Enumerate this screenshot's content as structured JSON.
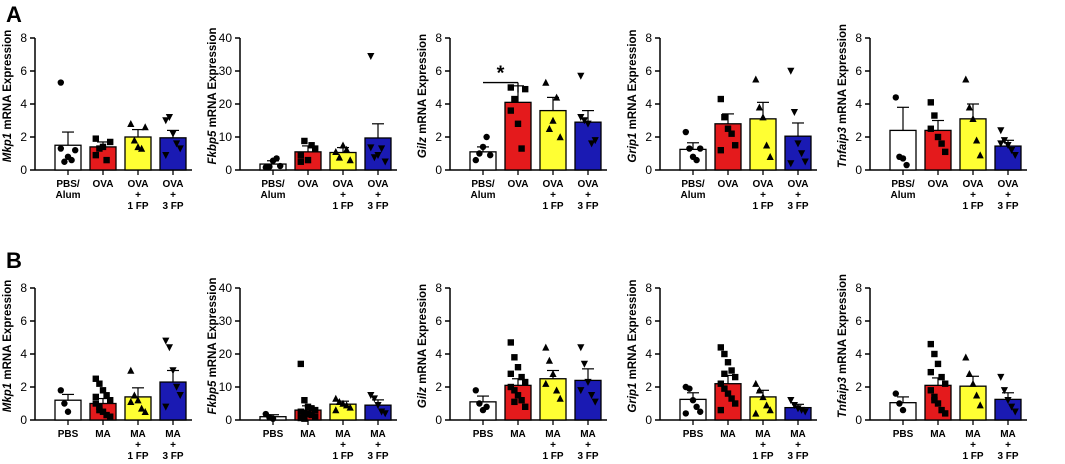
{
  "panel_labels": [
    "A",
    "B"
  ],
  "ylabel_suffix": "mRNA Expression",
  "colors": {
    "white": "#ffffff",
    "red": "#e41a1c",
    "yellow": "#ffff33",
    "blue": "#1a1ab3",
    "stroke": "#000000"
  },
  "chart_data": [
    {
      "panel": "A",
      "type": "bar",
      "gene": "Mkp1",
      "ylim": [
        0,
        8
      ],
      "yticks": [
        0,
        2,
        4,
        6,
        8
      ],
      "categories": [
        [
          "PBS/",
          "Alum"
        ],
        [
          "OVA"
        ],
        [
          "OVA",
          "+",
          "1 FP"
        ],
        [
          "OVA",
          "+",
          "3 FP"
        ]
      ],
      "fills": [
        "white",
        "red",
        "yellow",
        "blue"
      ],
      "values": [
        1.5,
        1.4,
        2.0,
        1.95
      ],
      "errors": [
        0.8,
        0.3,
        0.45,
        0.45
      ],
      "points": [
        [
          5.3,
          0.5,
          0.8,
          0.6,
          1.2,
          1.3
        ],
        [
          0.9,
          1.3,
          1.4,
          0.6,
          1.7,
          1.9
        ],
        [
          2.8,
          1.8,
          1.4,
          1.3,
          2.6
        ],
        [
          3.0,
          3.2,
          2.2,
          1.6,
          1.3,
          0.9
        ]
      ],
      "markers": [
        "circle",
        "square",
        "triangle",
        "tri-down"
      ]
    },
    {
      "panel": "A",
      "type": "bar",
      "gene": "Fkbp5",
      "ylim": [
        0,
        40
      ],
      "yticks": [
        0,
        10,
        20,
        30,
        40
      ],
      "categories": [
        [
          "PBS/",
          "Alum"
        ],
        [
          "OVA"
        ],
        [
          "OVA",
          "+",
          "1 FP"
        ],
        [
          "OVA",
          "+",
          "3 FP"
        ]
      ],
      "fills": [
        "white",
        "red",
        "yellow",
        "blue"
      ],
      "values": [
        1.8,
        5.5,
        5.3,
        9.7
      ],
      "errors": [
        1.0,
        1.8,
        1.5,
        4.3
      ],
      "points": [
        [
          0.8,
          1.0,
          2.8,
          3.5,
          1.2
        ],
        [
          2.5,
          8.8,
          3.0,
          7.5,
          6.5,
          4.5
        ],
        [
          5.5,
          3.8,
          7.5,
          6.2,
          3.0
        ],
        [
          34.5,
          3.8,
          4.5,
          6.5,
          2.5,
          6.8
        ]
      ],
      "markers": [
        "circle",
        "square",
        "triangle",
        "tri-down"
      ]
    },
    {
      "panel": "A",
      "type": "bar",
      "gene": "Gilz",
      "ylim": [
        0,
        8
      ],
      "yticks": [
        0,
        2,
        4,
        6,
        8
      ],
      "categories": [
        [
          "PBS/",
          "Alum"
        ],
        [
          "OVA"
        ],
        [
          "OVA",
          "+",
          "1 FP"
        ],
        [
          "OVA",
          "+",
          "3 FP"
        ]
      ],
      "fills": [
        "white",
        "red",
        "yellow",
        "blue"
      ],
      "values": [
        1.1,
        4.1,
        3.6,
        2.9
      ],
      "errors": [
        0.3,
        1.0,
        0.8,
        0.7
      ],
      "points": [
        [
          0.6,
          1.0,
          1.4,
          2.0,
          0.9
        ],
        [
          5.0,
          4.3,
          2.8,
          1.3,
          4.9,
          3.6
        ],
        [
          5.3,
          2.5,
          3.0,
          4.4,
          2.0
        ],
        [
          5.7,
          3.0,
          2.8,
          1.6,
          1.8,
          3.2
        ]
      ],
      "markers": [
        "circle",
        "square",
        "triangle",
        "tri-down"
      ],
      "significance": {
        "label": "*",
        "from": 0,
        "to": 1,
        "y": 5.3
      }
    },
    {
      "panel": "A",
      "type": "bar",
      "gene": "Grip1",
      "ylim": [
        0,
        8
      ],
      "yticks": [
        0,
        2,
        4,
        6,
        8
      ],
      "categories": [
        [
          "PBS/",
          "Alum"
        ],
        [
          "OVA"
        ],
        [
          "OVA",
          "+",
          "1 FP"
        ],
        [
          "OVA",
          "+",
          "3 FP"
        ]
      ],
      "fills": [
        "white",
        "red",
        "yellow",
        "blue"
      ],
      "values": [
        1.25,
        2.8,
        3.1,
        2.05
      ],
      "errors": [
        0.4,
        0.6,
        1.0,
        0.8
      ],
      "points": [
        [
          2.3,
          1.3,
          0.8,
          0.6,
          1.3
        ],
        [
          4.3,
          3.2,
          2.5,
          2.2,
          1.5,
          1.2
        ],
        [
          5.5,
          3.8,
          3.2,
          1.5,
          0.8
        ],
        [
          6.0,
          3.5,
          1.6,
          1.0,
          0.5,
          0.4
        ]
      ],
      "markers": [
        "circle",
        "square",
        "triangle",
        "tri-down"
      ]
    },
    {
      "panel": "A",
      "type": "bar",
      "gene": "Tnfaip3",
      "ylim": [
        0,
        8
      ],
      "yticks": [
        0,
        2,
        4,
        6,
        8
      ],
      "categories": [
        [
          "PBS/",
          "Alum"
        ],
        [
          "OVA"
        ],
        [
          "OVA",
          "+",
          "1 FP"
        ],
        [
          "OVA",
          "+",
          "3 FP"
        ]
      ],
      "fills": [
        "white",
        "red",
        "yellow",
        "blue"
      ],
      "values": [
        2.4,
        2.4,
        3.1,
        1.45
      ],
      "errors": [
        1.4,
        0.6,
        0.9,
        0.35
      ],
      "points": [
        [
          4.4,
          0.8,
          0.7,
          0.3
        ],
        [
          4.1,
          3.3,
          2.0,
          1.6,
          1.1,
          2.5
        ],
        [
          5.5,
          3.8,
          3.1,
          1.8,
          0.9
        ],
        [
          2.4,
          1.8,
          1.5,
          1.2,
          0.9,
          1.6
        ]
      ],
      "markers": [
        "circle",
        "square",
        "triangle",
        "tri-down"
      ]
    },
    {
      "panel": "B",
      "type": "bar",
      "gene": "Mkp1",
      "ylim": [
        0,
        8
      ],
      "yticks": [
        0,
        2,
        4,
        6,
        8
      ],
      "categories": [
        [
          "PBS"
        ],
        [
          "MA"
        ],
        [
          "MA",
          "+",
          "1 FP"
        ],
        [
          "MA",
          "+",
          "3 FP"
        ]
      ],
      "fills": [
        "white",
        "red",
        "yellow",
        "blue"
      ],
      "values": [
        1.2,
        1.0,
        1.4,
        2.3
      ],
      "errors": [
        0.35,
        0.3,
        0.55,
        0.7
      ],
      "points": [
        [
          1.8,
          1.0,
          0.5
        ],
        [
          2.5,
          2.2,
          1.8,
          1.5,
          1.2,
          1.0,
          0.8,
          0.5,
          0.3,
          0.2,
          1.4,
          0.6
        ],
        [
          3.0,
          1.5,
          1.2,
          0.7,
          0.5,
          1.1
        ],
        [
          4.8,
          4.4,
          3.0,
          2.0,
          1.5,
          0.8
        ]
      ],
      "markers": [
        "circle",
        "square",
        "triangle",
        "tri-down"
      ]
    },
    {
      "panel": "B",
      "type": "bar",
      "gene": "Fkbp5",
      "ylim": [
        0,
        40
      ],
      "yticks": [
        0,
        10,
        20,
        30,
        40
      ],
      "categories": [
        [
          "PBS"
        ],
        [
          "MA"
        ],
        [
          "MA",
          "+",
          "1 FP"
        ],
        [
          "MA",
          "+",
          "3 FP"
        ]
      ],
      "fills": [
        "white",
        "red",
        "yellow",
        "blue"
      ],
      "values": [
        1.0,
        3.0,
        4.8,
        4.5
      ],
      "errors": [
        0.6,
        1.3,
        0.9,
        1.6
      ],
      "points": [
        [
          1.8,
          0.8,
          0.4
        ],
        [
          17.0,
          6.0,
          4.0,
          3.5,
          3.0,
          2.5,
          2.2,
          1.8,
          1.5,
          1.0,
          0.6,
          0.4
        ],
        [
          6.5,
          5.5,
          5.0,
          4.5,
          3.8,
          3.0
        ],
        [
          7.5,
          6.5,
          4.5,
          2.5,
          2.0
        ]
      ],
      "markers": [
        "circle",
        "square",
        "triangle",
        "tri-down"
      ]
    },
    {
      "panel": "B",
      "type": "bar",
      "gene": "Gilz",
      "ylim": [
        0,
        8
      ],
      "yticks": [
        0,
        2,
        4,
        6,
        8
      ],
      "categories": [
        [
          "PBS"
        ],
        [
          "MA"
        ],
        [
          "MA",
          "+",
          "1 FP"
        ],
        [
          "MA",
          "+",
          "3 FP"
        ]
      ],
      "fills": [
        "white",
        "red",
        "yellow",
        "blue"
      ],
      "values": [
        1.1,
        2.1,
        2.5,
        2.4
      ],
      "errors": [
        0.35,
        0.4,
        0.5,
        0.7
      ],
      "points": [
        [
          1.8,
          1.0,
          0.6,
          0.8
        ],
        [
          4.7,
          3.8,
          3.2,
          2.6,
          2.3,
          2.0,
          1.8,
          1.5,
          1.2,
          0.8,
          2.8,
          1.1
        ],
        [
          4.4,
          3.6,
          2.8,
          1.8,
          1.3,
          2.2
        ],
        [
          4.4,
          3.4,
          2.3,
          1.5,
          1.1,
          1.8
        ]
      ],
      "markers": [
        "circle",
        "square",
        "triangle",
        "tri-down"
      ]
    },
    {
      "panel": "B",
      "type": "bar",
      "gene": "Grip1",
      "ylim": [
        0,
        8
      ],
      "yticks": [
        0,
        2,
        4,
        6,
        8
      ],
      "categories": [
        [
          "PBS"
        ],
        [
          "MA"
        ],
        [
          "MA",
          "+",
          "1 FP"
        ],
        [
          "MA",
          "+",
          "3 FP"
        ]
      ],
      "fills": [
        "white",
        "red",
        "yellow",
        "blue"
      ],
      "values": [
        1.25,
        2.2,
        1.4,
        0.75
      ],
      "errors": [
        0.4,
        0.5,
        0.4,
        0.2
      ],
      "points": [
        [
          2.0,
          1.9,
          1.2,
          0.8,
          0.5,
          0.4
        ],
        [
          4.4,
          4.0,
          3.5,
          3.0,
          2.6,
          2.2,
          1.9,
          1.6,
          1.3,
          1.0,
          0.6,
          2.8
        ],
        [
          2.2,
          1.8,
          1.4,
          0.9,
          0.6,
          0.4
        ],
        [
          1.2,
          0.9,
          0.7,
          0.6,
          0.5
        ]
      ],
      "markers": [
        "circle",
        "square",
        "triangle",
        "tri-down"
      ]
    },
    {
      "panel": "B",
      "type": "bar",
      "gene": "Tnfaip3",
      "ylim": [
        0,
        8
      ],
      "yticks": [
        0,
        2,
        4,
        6,
        8
      ],
      "categories": [
        [
          "PBS"
        ],
        [
          "MA"
        ],
        [
          "MA",
          "+",
          "1 FP"
        ],
        [
          "MA",
          "+",
          "3 FP"
        ]
      ],
      "fills": [
        "white",
        "red",
        "yellow",
        "blue"
      ],
      "values": [
        1.05,
        2.1,
        2.05,
        1.25
      ],
      "errors": [
        0.35,
        0.45,
        0.6,
        0.4
      ],
      "points": [
        [
          1.6,
          1.0,
          0.6
        ],
        [
          4.6,
          4.0,
          3.4,
          2.6,
          2.2,
          1.8,
          1.4,
          1.0,
          0.6,
          0.4,
          2.9,
          1.2
        ],
        [
          3.8,
          2.8,
          2.2,
          1.5,
          0.9
        ],
        [
          2.6,
          1.8,
          1.2,
          0.8,
          0.5
        ]
      ],
      "markers": [
        "circle",
        "square",
        "triangle",
        "tri-down"
      ]
    }
  ]
}
